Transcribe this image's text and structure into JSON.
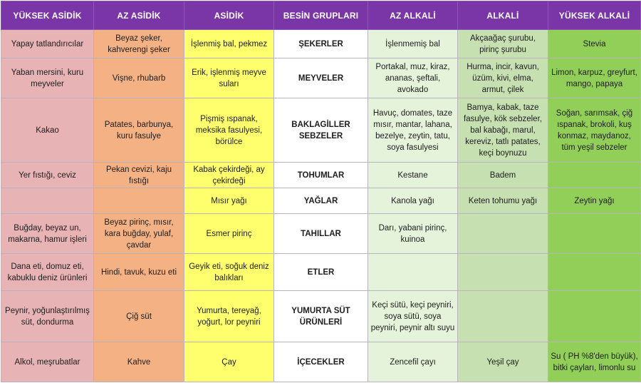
{
  "headers": [
    "YÜKSEK ASİDİK",
    "AZ ASİDİK",
    "ASİDİK",
    "BESİN GRUPLARI",
    "AZ ALKALİ",
    "ALKALİ",
    "YÜKSEK ALKALİ"
  ],
  "rows": [
    {
      "cells": [
        "Yapay tatlandırıcılar",
        "Beyaz şeker, kahverengi şeker",
        "İşlenmiş bal, pekmez",
        "ŞEKERLER",
        "İşlenmemiş bal",
        "Akçaağaç şurubu, pirinç şurubu",
        "Stevia"
      ]
    },
    {
      "cells": [
        "Yaban mersini, kuru meyveler",
        "Vişne, rhubarb",
        "Erik, işlenmiş meyve suları",
        "MEYVELER",
        "Portakal, muz, kiraz, ananas, şeftali, avokado",
        "Hurma, incir, kavun, üzüm, kivi, elma, armut, çilek",
        "Limon, karpuz, greyfurt, mango, papaya"
      ]
    },
    {
      "cells": [
        "Kakao",
        "Patates, barbunya, kuru fasulye",
        "Pişmiş ıspanak, meksika fasulyesi, börülce",
        "BAKLAGİLLER SEBZELER",
        "Havuç, domates, taze mısır, mantar, lahana, bezelye, zeytin, tatu, soya fasulyesi",
        "Bamya, kabak, taze fasulye, kök sebzeler, bal kabağı, marul, kereviz, tatlı patates, keçi boynuzu",
        "Soğan, sarımsak, çiğ ıspanak, brokoli, kuş konmaz, maydanoz, tüm yeşil sebzeler"
      ]
    },
    {
      "cells": [
        "Yer fıstığı, ceviz",
        "Pekan cevizi, kaju fıstığı",
        "Kabak çekirdeği, ay çekirdeği",
        "TOHUMLAR",
        "Kestane",
        "Badem",
        ""
      ]
    },
    {
      "cells": [
        "",
        "",
        "Mısır yağı",
        "YAĞLAR",
        "Kanola yağı",
        "Keten tohumu yağı",
        "Zeytin yağı"
      ]
    },
    {
      "cells": [
        "Buğday, beyaz un, makarna, hamur işleri",
        "Beyaz pirinç, mısır, kara buğday, yulaf, çavdar",
        "Esmer pirinç",
        "TAHILLAR",
        "Darı, yabani pirinç, kuinoa",
        "",
        ""
      ]
    },
    {
      "cells": [
        "Dana eti, domuz eti, kabuklu deniz ürünleri",
        "Hindi, tavuk, kuzu eti",
        "Geyik eti, soğuk deniz balıkları",
        "ETLER",
        "",
        "",
        ""
      ]
    },
    {
      "cells": [
        "Peynir, yoğunlaştırılmış süt, dondurma",
        "Çiğ süt",
        "Yumurta, tereyağ, yoğurt, lor peyniri",
        "YUMURTA SÜT ÜRÜNLERİ",
        "Keçi sütü, keçi peyniri, soya sütü, soya peyniri, peynir altı suyu",
        "",
        ""
      ]
    },
    {
      "cells": [
        "Alkol, meşrubatlar",
        "Kahve",
        "Çay",
        "İÇECEKLER",
        "Zencefil çayı",
        "Yeşil çay",
        "Su ( PH %8'den büyük), bitki çayları, limonlu su"
      ]
    }
  ]
}
